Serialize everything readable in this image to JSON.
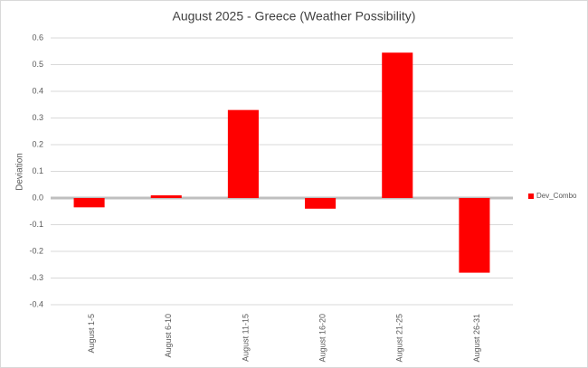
{
  "chart_data": {
    "type": "bar",
    "title": "August 2025 - Greece (Weather Possibility)",
    "y_label": "Deviation",
    "categories": [
      "August 1-5",
      "August 6-10",
      "August 11-15",
      "August 16-20",
      "August 21-25",
      "August 26-31"
    ],
    "series": [
      {
        "name": "Dev_Combo",
        "color": "#ff0000",
        "values": [
          -0.035,
          0.01,
          0.33,
          -0.04,
          0.545,
          -0.28
        ]
      }
    ],
    "ylim": [
      -0.4,
      0.6
    ],
    "yticks": [
      0.6,
      0.5,
      0.4,
      0.3,
      0.2,
      0.1,
      {
        "value": 0,
        "label": "0.0"
      },
      -0.1,
      -0.2,
      -0.3,
      -0.4
    ],
    "grid": true,
    "legend": "right"
  }
}
